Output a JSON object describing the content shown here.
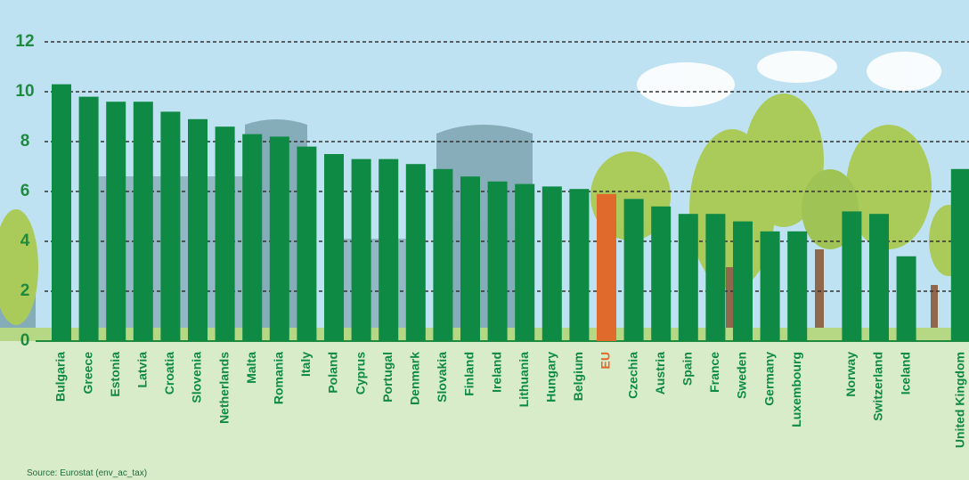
{
  "chart_data": {
    "type": "bar",
    "categories": [
      "Bulgaria",
      "Greece",
      "Estonia",
      "Latvia",
      "Croatia",
      "Slovenia",
      "Netherlands",
      "Malta",
      "Romania",
      "Italy",
      "Poland",
      "Cyprus",
      "Portugal",
      "Denmark",
      "Slovakia",
      "Finland",
      "Ireland",
      "Lithuania",
      "Hungary",
      "Belgium",
      "EU",
      "Czechia",
      "Austria",
      "Spain",
      "France",
      "Sweden",
      "Germany",
      "Luxembourg",
      "Norway",
      "Switzerland",
      "Iceland",
      "United Kingdom"
    ],
    "values": [
      10.3,
      9.8,
      9.6,
      9.6,
      9.2,
      8.9,
      8.6,
      8.3,
      8.2,
      7.8,
      7.5,
      7.3,
      7.3,
      7.1,
      6.9,
      6.6,
      6.4,
      6.3,
      6.2,
      6.1,
      5.9,
      5.7,
      5.4,
      5.1,
      5.1,
      4.8,
      4.4,
      4.4,
      5.2,
      5.1,
      3.4,
      6.9
    ],
    "colors": [
      "#0f8a45",
      "#0f8a45",
      "#0f8a45",
      "#0f8a45",
      "#0f8a45",
      "#0f8a45",
      "#0f8a45",
      "#0f8a45",
      "#0f8a45",
      "#0f8a45",
      "#0f8a45",
      "#0f8a45",
      "#0f8a45",
      "#0f8a45",
      "#0f8a45",
      "#0f8a45",
      "#0f8a45",
      "#0f8a45",
      "#0f8a45",
      "#0f8a45",
      "#e0692c",
      "#0f8a45",
      "#0f8a45",
      "#0f8a45",
      "#0f8a45",
      "#0f8a45",
      "#0f8a45",
      "#0f8a45",
      "#0f8a45",
      "#0f8a45",
      "#0f8a45",
      "#0f8a45"
    ],
    "ylim": [
      0,
      12.5
    ],
    "yticks": [
      0,
      2,
      4,
      6,
      8,
      10,
      12
    ],
    "grid": true,
    "source": "Source: Eurostat (env_ac_tax)"
  }
}
